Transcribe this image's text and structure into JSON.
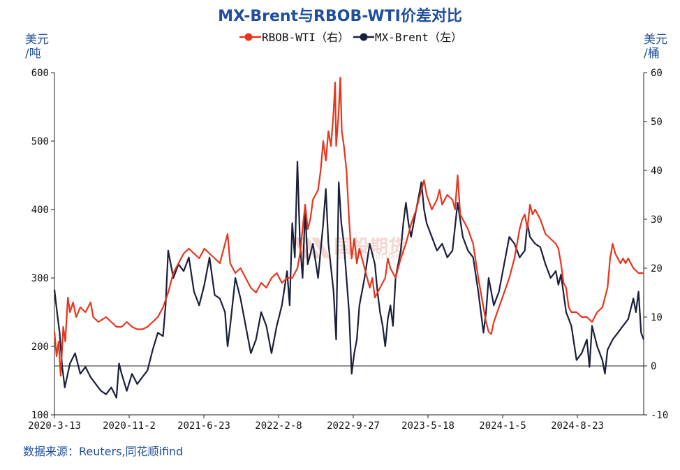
{
  "chart_data": {
    "type": "line",
    "title": "MX-Brent与RBOB-WTI价差对比",
    "y_left_unit": "美元\n/吨",
    "y_right_unit": "美元\n/桶",
    "ylim_left": [
      100,
      600
    ],
    "ylim_right": [
      -10,
      60
    ],
    "yticks_left": [
      100,
      200,
      300,
      400,
      500,
      600
    ],
    "yticks_right": [
      -10,
      0,
      10,
      20,
      30,
      40,
      50,
      60
    ],
    "yticks_right_labels": [
      "-10",
      "0",
      "10",
      "20",
      "30",
      "40",
      "50",
      "60"
    ],
    "x_tick_labels": [
      "2020-3-13",
      "2020-11-2",
      "2021-6-23",
      "2022-2-8",
      "2022-9-27",
      "2023-5-18",
      "2024-1-5",
      "2024-8-23"
    ],
    "legend_position": "top-center",
    "source": "数据来源：Reuters,同花顺ifind",
    "watermark": "国投期货",
    "colors": {
      "RBOB-WTI": "#e8341c",
      "MX-Brent": "#1a1f3c",
      "title": "#1f4e9c"
    },
    "series": [
      {
        "name": "RBOB-WTI（右）",
        "axis": "right",
        "color": "#e8341c",
        "points": [
          [
            0.0,
            7
          ],
          [
            0.004,
            2
          ],
          [
            0.008,
            5
          ],
          [
            0.012,
            -2
          ],
          [
            0.017,
            8
          ],
          [
            0.021,
            5
          ],
          [
            0.026,
            14
          ],
          [
            0.03,
            11
          ],
          [
            0.036,
            13
          ],
          [
            0.042,
            10
          ],
          [
            0.05,
            12
          ],
          [
            0.06,
            11
          ],
          [
            0.07,
            13
          ],
          [
            0.075,
            10
          ],
          [
            0.085,
            9
          ],
          [
            0.1,
            10
          ],
          [
            0.11,
            9
          ],
          [
            0.12,
            8
          ],
          [
            0.13,
            8
          ],
          [
            0.14,
            9
          ],
          [
            0.15,
            8
          ],
          [
            0.16,
            7.5
          ],
          [
            0.17,
            7.5
          ],
          [
            0.18,
            8
          ],
          [
            0.19,
            9
          ],
          [
            0.2,
            10
          ],
          [
            0.21,
            12
          ],
          [
            0.22,
            15
          ],
          [
            0.23,
            19
          ],
          [
            0.24,
            21
          ],
          [
            0.25,
            23
          ],
          [
            0.26,
            24
          ],
          [
            0.27,
            23
          ],
          [
            0.28,
            22
          ],
          [
            0.29,
            24
          ],
          [
            0.3,
            23
          ],
          [
            0.31,
            22
          ],
          [
            0.32,
            21
          ],
          [
            0.33,
            25
          ],
          [
            0.335,
            27
          ],
          [
            0.34,
            21
          ],
          [
            0.35,
            19
          ],
          [
            0.36,
            20
          ],
          [
            0.37,
            18
          ],
          [
            0.38,
            16
          ],
          [
            0.39,
            15
          ],
          [
            0.4,
            17
          ],
          [
            0.41,
            16
          ],
          [
            0.42,
            18
          ],
          [
            0.43,
            19
          ],
          [
            0.44,
            17
          ],
          [
            0.45,
            18
          ],
          [
            0.46,
            18
          ],
          [
            0.47,
            20
          ],
          [
            0.475,
            23
          ],
          [
            0.48,
            28
          ],
          [
            0.485,
            33
          ],
          [
            0.49,
            28
          ],
          [
            0.495,
            30
          ],
          [
            0.5,
            34
          ],
          [
            0.51,
            36
          ],
          [
            0.515,
            40
          ],
          [
            0.52,
            46
          ],
          [
            0.525,
            42
          ],
          [
            0.53,
            48
          ],
          [
            0.535,
            45
          ],
          [
            0.54,
            52
          ],
          [
            0.543,
            58
          ],
          [
            0.545,
            45
          ],
          [
            0.55,
            52
          ],
          [
            0.553,
            59
          ],
          [
            0.556,
            48
          ],
          [
            0.56,
            45
          ],
          [
            0.565,
            40
          ],
          [
            0.57,
            30
          ],
          [
            0.575,
            22
          ],
          [
            0.58,
            26
          ],
          [
            0.585,
            21
          ],
          [
            0.59,
            24
          ],
          [
            0.6,
            20
          ],
          [
            0.61,
            16
          ],
          [
            0.615,
            18
          ],
          [
            0.62,
            14
          ],
          [
            0.63,
            16
          ],
          [
            0.64,
            18
          ],
          [
            0.645,
            22
          ],
          [
            0.65,
            20
          ],
          [
            0.66,
            18
          ],
          [
            0.67,
            22
          ],
          [
            0.68,
            25
          ],
          [
            0.69,
            29
          ],
          [
            0.7,
            32
          ],
          [
            0.705,
            34
          ],
          [
            0.71,
            36
          ],
          [
            0.715,
            38
          ],
          [
            0.72,
            35
          ],
          [
            0.73,
            32
          ],
          [
            0.74,
            34
          ],
          [
            0.745,
            36
          ],
          [
            0.75,
            33
          ],
          [
            0.76,
            35
          ],
          [
            0.77,
            34
          ],
          [
            0.775,
            32
          ],
          [
            0.78,
            39
          ],
          [
            0.785,
            31
          ],
          [
            0.79,
            30
          ],
          [
            0.8,
            28
          ],
          [
            0.81,
            25
          ],
          [
            0.82,
            18
          ],
          [
            0.83,
            12
          ],
          [
            0.835,
            9
          ],
          [
            0.84,
            7
          ],
          [
            0.845,
            6.5
          ],
          [
            0.85,
            9
          ],
          [
            0.86,
            12
          ],
          [
            0.87,
            15
          ],
          [
            0.88,
            18
          ],
          [
            0.89,
            22
          ],
          [
            0.9,
            28
          ],
          [
            0.905,
            30
          ],
          [
            0.91,
            31
          ],
          [
            0.915,
            28
          ],
          [
            0.92,
            33
          ],
          [
            0.925,
            31
          ],
          [
            0.93,
            32
          ],
          [
            0.94,
            30
          ],
          [
            0.95,
            27
          ],
          [
            0.96,
            26
          ],
          [
            0.97,
            25
          ],
          [
            0.975,
            24
          ],
          [
            0.98,
            21
          ],
          [
            0.985,
            17
          ],
          [
            0.99,
            16
          ],
          [
            0.995,
            12
          ],
          [
            1.0,
            11
          ],
          [
            1.01,
            11
          ],
          [
            1.02,
            10
          ],
          [
            1.03,
            10
          ],
          [
            1.04,
            9
          ],
          [
            1.05,
            11
          ],
          [
            1.06,
            12
          ],
          [
            1.07,
            16
          ],
          [
            1.075,
            22
          ],
          [
            1.08,
            25
          ],
          [
            1.085,
            23
          ],
          [
            1.09,
            22
          ],
          [
            1.095,
            21
          ],
          [
            1.1,
            22
          ],
          [
            1.105,
            21
          ],
          [
            1.11,
            22
          ],
          [
            1.115,
            21
          ],
          [
            1.12,
            20
          ],
          [
            1.13,
            19
          ],
          [
            1.14,
            19
          ]
        ]
      },
      {
        "name": "MX-Brent（左）",
        "axis": "left",
        "color": "#1a1f3c",
        "points": [
          [
            0.0,
            283
          ],
          [
            0.005,
            250
          ],
          [
            0.01,
            220
          ],
          [
            0.015,
            170
          ],
          [
            0.02,
            140
          ],
          [
            0.03,
            175
          ],
          [
            0.04,
            190
          ],
          [
            0.05,
            160
          ],
          [
            0.06,
            170
          ],
          [
            0.07,
            155
          ],
          [
            0.08,
            145
          ],
          [
            0.09,
            135
          ],
          [
            0.1,
            130
          ],
          [
            0.11,
            140
          ],
          [
            0.12,
            125
          ],
          [
            0.125,
            175
          ],
          [
            0.13,
            160
          ],
          [
            0.14,
            135
          ],
          [
            0.15,
            160
          ],
          [
            0.16,
            145
          ],
          [
            0.17,
            155
          ],
          [
            0.18,
            165
          ],
          [
            0.19,
            195
          ],
          [
            0.2,
            220
          ],
          [
            0.21,
            215
          ],
          [
            0.215,
            260
          ],
          [
            0.22,
            340
          ],
          [
            0.23,
            300
          ],
          [
            0.24,
            320
          ],
          [
            0.25,
            310
          ],
          [
            0.26,
            330
          ],
          [
            0.27,
            280
          ],
          [
            0.28,
            260
          ],
          [
            0.29,
            290
          ],
          [
            0.3,
            330
          ],
          [
            0.31,
            275
          ],
          [
            0.32,
            270
          ],
          [
            0.33,
            250
          ],
          [
            0.335,
            200
          ],
          [
            0.34,
            230
          ],
          [
            0.35,
            300
          ],
          [
            0.36,
            270
          ],
          [
            0.37,
            230
          ],
          [
            0.38,
            190
          ],
          [
            0.39,
            210
          ],
          [
            0.4,
            250
          ],
          [
            0.41,
            230
          ],
          [
            0.42,
            190
          ],
          [
            0.43,
            230
          ],
          [
            0.44,
            260
          ],
          [
            0.45,
            310
          ],
          [
            0.455,
            260
          ],
          [
            0.46,
            380
          ],
          [
            0.465,
            330
          ],
          [
            0.47,
            470
          ],
          [
            0.475,
            350
          ],
          [
            0.48,
            300
          ],
          [
            0.485,
            400
          ],
          [
            0.49,
            320
          ],
          [
            0.5,
            350
          ],
          [
            0.51,
            300
          ],
          [
            0.52,
            380
          ],
          [
            0.525,
            430
          ],
          [
            0.53,
            350
          ],
          [
            0.54,
            280
          ],
          [
            0.545,
            210
          ],
          [
            0.55,
            440
          ],
          [
            0.555,
            380
          ],
          [
            0.56,
            350
          ],
          [
            0.565,
            300
          ],
          [
            0.57,
            250
          ],
          [
            0.575,
            160
          ],
          [
            0.58,
            190
          ],
          [
            0.585,
            210
          ],
          [
            0.59,
            260
          ],
          [
            0.6,
            300
          ],
          [
            0.61,
            350
          ],
          [
            0.62,
            320
          ],
          [
            0.625,
            280
          ],
          [
            0.63,
            250
          ],
          [
            0.635,
            230
          ],
          [
            0.64,
            200
          ],
          [
            0.645,
            240
          ],
          [
            0.65,
            260
          ],
          [
            0.655,
            230
          ],
          [
            0.66,
            300
          ],
          [
            0.67,
            340
          ],
          [
            0.675,
            380
          ],
          [
            0.68,
            410
          ],
          [
            0.685,
            380
          ],
          [
            0.69,
            360
          ],
          [
            0.7,
            400
          ],
          [
            0.705,
            420
          ],
          [
            0.71,
            440
          ],
          [
            0.715,
            400
          ],
          [
            0.72,
            380
          ],
          [
            0.73,
            360
          ],
          [
            0.74,
            340
          ],
          [
            0.75,
            350
          ],
          [
            0.76,
            330
          ],
          [
            0.77,
            340
          ],
          [
            0.78,
            410
          ],
          [
            0.79,
            360
          ],
          [
            0.8,
            340
          ],
          [
            0.81,
            330
          ],
          [
            0.82,
            280
          ],
          [
            0.83,
            220
          ],
          [
            0.835,
            250
          ],
          [
            0.84,
            300
          ],
          [
            0.85,
            260
          ],
          [
            0.86,
            280
          ],
          [
            0.87,
            320
          ],
          [
            0.88,
            360
          ],
          [
            0.89,
            350
          ],
          [
            0.9,
            330
          ],
          [
            0.91,
            340
          ],
          [
            0.915,
            380
          ],
          [
            0.92,
            360
          ],
          [
            0.93,
            350
          ],
          [
            0.94,
            345
          ],
          [
            0.95,
            320
          ],
          [
            0.96,
            300
          ],
          [
            0.97,
            310
          ],
          [
            0.975,
            290
          ],
          [
            0.98,
            305
          ],
          [
            0.99,
            250
          ],
          [
            1.0,
            230
          ],
          [
            1.01,
            180
          ],
          [
            1.02,
            190
          ],
          [
            1.03,
            210
          ],
          [
            1.035,
            170
          ],
          [
            1.04,
            230
          ],
          [
            1.05,
            200
          ],
          [
            1.06,
            180
          ],
          [
            1.065,
            160
          ],
          [
            1.07,
            195
          ],
          [
            1.08,
            210
          ],
          [
            1.09,
            220
          ],
          [
            1.1,
            230
          ],
          [
            1.11,
            240
          ],
          [
            1.12,
            270
          ],
          [
            1.125,
            250
          ],
          [
            1.13,
            280
          ],
          [
            1.135,
            220
          ],
          [
            1.14,
            210
          ]
        ]
      }
    ]
  }
}
